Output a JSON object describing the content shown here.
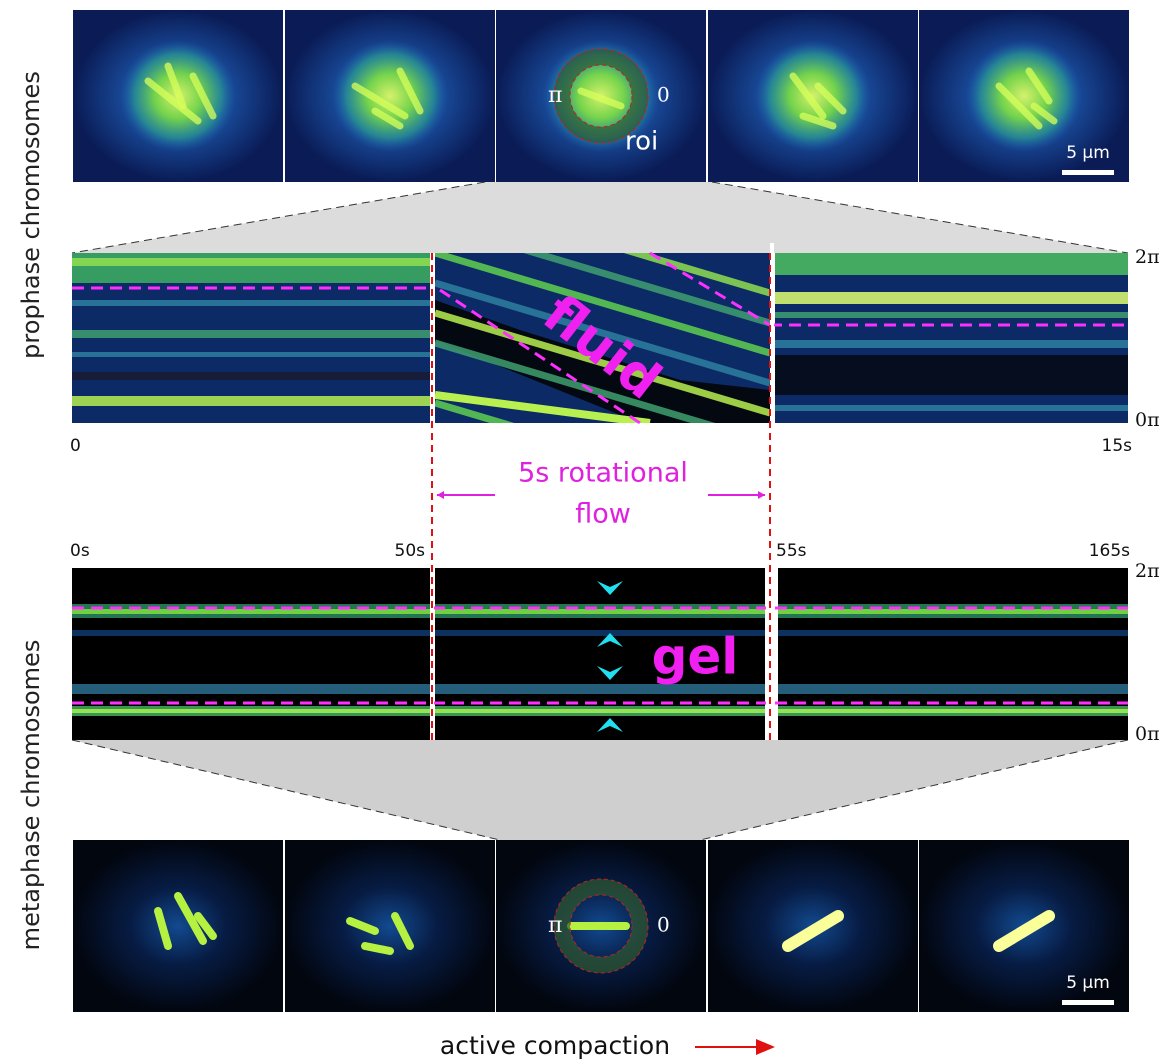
{
  "side_labels": {
    "top": "prophase chromosomes",
    "bottom": "metaphase chromosomes"
  },
  "top_panel": {
    "phase_left": "π",
    "phase_right": "0",
    "roi": "roi",
    "scale_bar": "5 µm"
  },
  "top_kymograph": {
    "y_top": "2π",
    "y_bottom": "0π",
    "x_start": "0",
    "x_end": "15s",
    "annotation": "fluid"
  },
  "flow_label": {
    "line1": "5s rotational",
    "line2": "flow"
  },
  "bottom_kymograph": {
    "t0": "0s",
    "t1": "50s",
    "t2": "55s",
    "t3": "165s",
    "y_top": "2π",
    "y_bottom": "0π",
    "annotation": "gel"
  },
  "bottom_panel": {
    "phase_left": "π",
    "phase_right": "0",
    "scale_bar": "5 µm"
  },
  "footer": "active compaction"
}
